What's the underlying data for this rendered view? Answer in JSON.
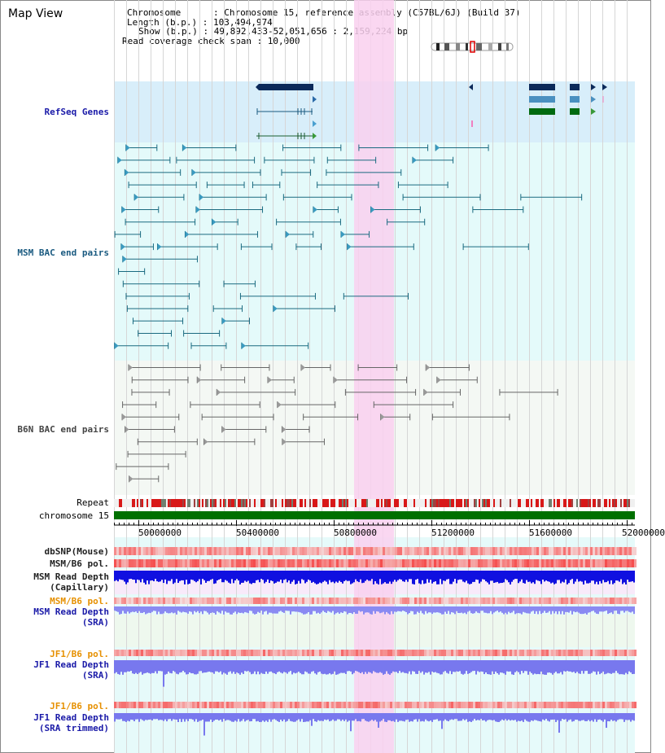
{
  "view_title": "Map View",
  "info": {
    "chromosome": "Chromosome      : Chromosome 15, reference assembly (C57BL/6J) (Build 37)",
    "length": "Length (b.p.) : 103,494,974",
    "show": "Show (b.p.) : 49,892,433-52,051,656 : 2,159,224 bp",
    "coverage": "Read coverage check span : 10,000"
  },
  "tracks": {
    "refseq": "RefSeq Genes",
    "msm_bac": "MSM BAC end pairs",
    "b6n_bac": "B6N BAC end pairs",
    "repeat": "Repeat",
    "chromosome": "chromosome 15",
    "dbsnp": "dbSNP(Mouse)",
    "msm_b6_pol": "MSM/B6 pol.",
    "msm_depth_cap_1": "MSM Read Depth",
    "msm_depth_cap_2": "(Capillary)",
    "msm_b6_pol_2": "MSM/B6 pol.",
    "msm_depth_sra_1": "MSM Read Depth",
    "msm_depth_sra_2": "(SRA)",
    "jf1_b6_pol": "JF1/B6 pol.",
    "jf1_depth_sra_1": "JF1 Read Depth",
    "jf1_depth_sra_2": "(SRA)",
    "jf1_b6_pol_2": "JF1/B6 pol.",
    "jf1_depth_trim_1": "JF1 Read Depth",
    "jf1_depth_trim_2": "(SRA trimmed)"
  },
  "axis_ticks": [
    "50000000",
    "50400000",
    "50800000",
    "51200000",
    "51600000",
    "52000000"
  ],
  "colors": {
    "refseq_bg": "#d8eefa",
    "msm_bg": "#e4fafa",
    "b6n_bg": "#f2faf2",
    "highlight": "#f8d8f0",
    "chromosome_bar": "#007000",
    "repeat_red": "#d81818",
    "depth_blue": "#1010e0",
    "depth_light": "#8080f0",
    "pol_red": "#f04040"
  }
}
